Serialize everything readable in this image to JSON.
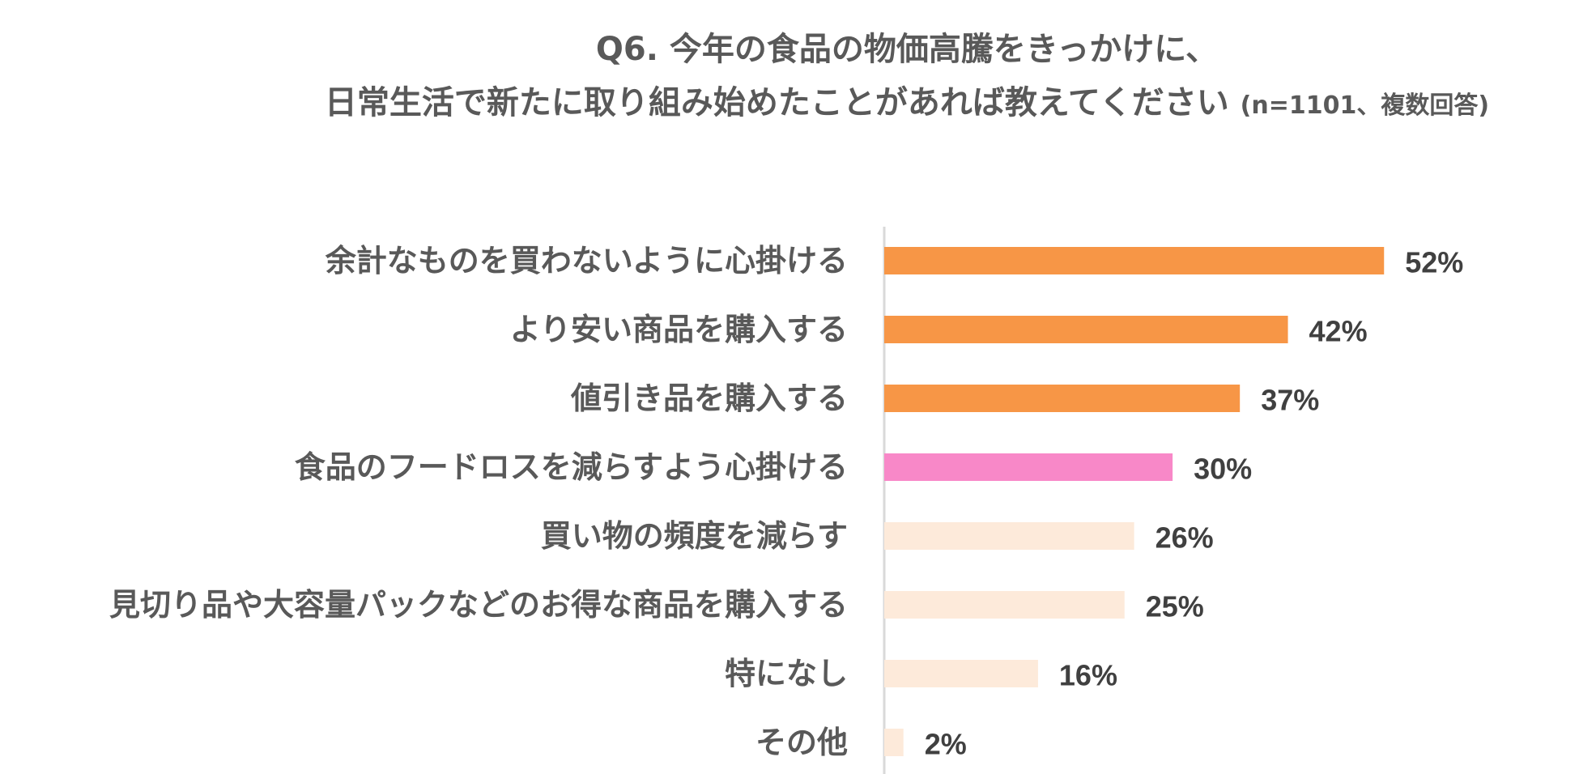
{
  "chart_data": {
    "type": "bar",
    "orientation": "horizontal",
    "title_line1": "Q6. 今年の食品の物価高騰をきっかけに、",
    "title_line2": "日常生活で新たに取り組み始めたことがあれば教えてください",
    "title_note": "(n=1101、複数回答)",
    "categories": [
      "余計なものを買わないように心掛ける",
      "より安い商品を購入する",
      "値引き品を購入する",
      "食品のフードロスを減らすよう心掛ける",
      "買い物の頻度を減らす",
      "見切り品や大容量パックなどのお得な商品を購入する",
      "特になし",
      "その他"
    ],
    "values": [
      52,
      42,
      37,
      30,
      26,
      25,
      16,
      2
    ],
    "value_labels": [
      "52%",
      "42%",
      "37%",
      "30%",
      "26%",
      "25%",
      "16%",
      "2%"
    ],
    "bar_colors": [
      "#F79646",
      "#F79646",
      "#F79646",
      "#F888C8",
      "#FDEADA",
      "#FDEADA",
      "#FDEADA",
      "#FDEADA"
    ],
    "xlim": [
      0,
      100
    ],
    "grid": false,
    "legend": "none"
  }
}
